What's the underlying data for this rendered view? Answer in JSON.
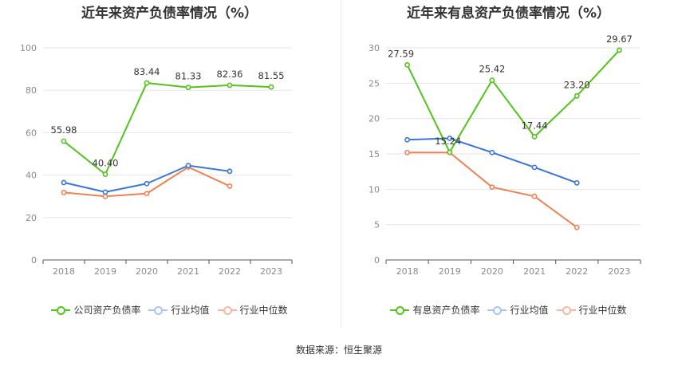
{
  "source": "数据来源：恒生聚源",
  "chart_data": [
    {
      "type": "line",
      "title": "近年来资产负债率情况（%）",
      "categories": [
        "2018",
        "2019",
        "2020",
        "2021",
        "2022",
        "2023"
      ],
      "ylim": [
        0,
        100
      ],
      "yticks": [
        0,
        20,
        40,
        60,
        80,
        100
      ],
      "ytick_labels": [
        "0",
        "20",
        "40",
        "60",
        "80",
        "100"
      ],
      "series": [
        {
          "name": "公司资产负债率",
          "color": "#52c41a",
          "values": [
            55.98,
            40.4,
            83.44,
            81.33,
            82.36,
            81.55
          ],
          "labels": [
            "55.98",
            "40.40",
            "83.44",
            "81.33",
            "82.36",
            "81.55"
          ]
        },
        {
          "name": "行业均值",
          "color": "#3a75d8",
          "values": [
            36.5,
            32.0,
            36.0,
            44.5,
            41.8,
            null
          ]
        },
        {
          "name": "行业中位数",
          "color": "#f08155",
          "values": [
            31.8,
            30.0,
            31.3,
            43.8,
            34.8,
            null
          ]
        }
      ]
    },
    {
      "type": "line",
      "title": "近年来有息资产负债率情况（%）",
      "categories": [
        "2018",
        "2019",
        "2020",
        "2021",
        "2022",
        "2023"
      ],
      "ylim": [
        0,
        30
      ],
      "yticks": [
        0,
        5,
        10,
        15,
        20,
        25,
        30
      ],
      "ytick_labels": [
        "0",
        "5",
        "10",
        "15",
        "20",
        "25",
        "30"
      ],
      "series": [
        {
          "name": "有息资产负债率",
          "color": "#52c41a",
          "values": [
            27.59,
            15.24,
            25.42,
            17.44,
            23.2,
            29.67
          ],
          "labels": [
            "27.59",
            "15.24",
            "25.42",
            "17.44",
            "23.20",
            "29.67"
          ]
        },
        {
          "name": "行业均值",
          "color": "#3a75d8",
          "values": [
            17.0,
            17.2,
            15.2,
            13.1,
            10.9,
            null
          ]
        },
        {
          "name": "行业中位数",
          "color": "#f08155",
          "values": [
            15.2,
            15.2,
            10.3,
            9.0,
            4.6,
            null
          ]
        }
      ]
    }
  ]
}
